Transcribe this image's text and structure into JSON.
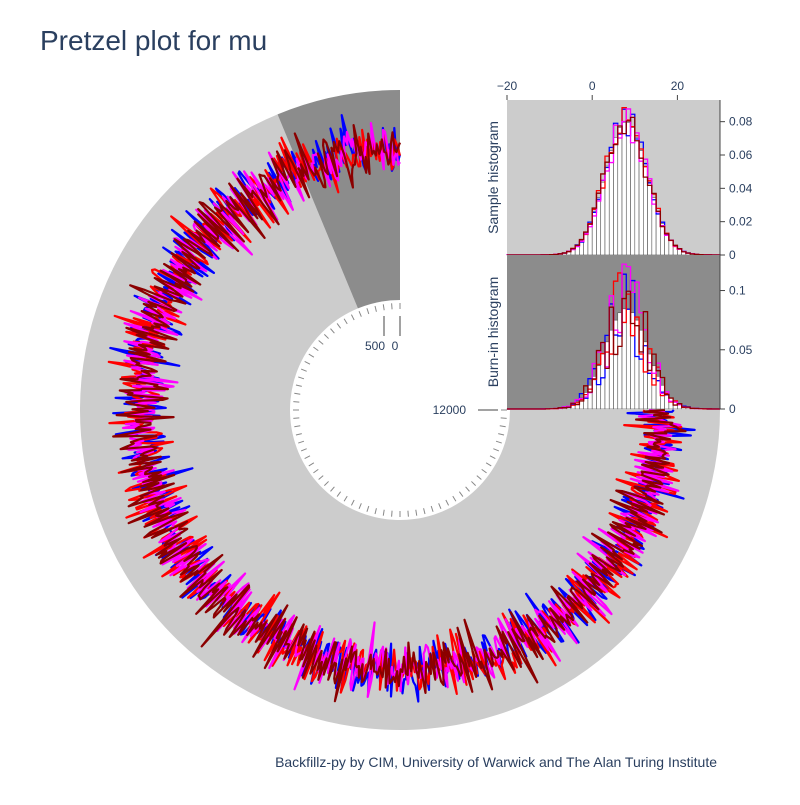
{
  "title": "Pretzel plot for mu",
  "footer": "Backfillz-py by CIM, University of Warwick and The Alan Turing Institute",
  "colors": {
    "ring_background": "#cccccc",
    "burnin_background": "#8c8c8c",
    "chains": [
      "#0000ff",
      "#ff0000",
      "#ff00ff",
      "#8b0000"
    ],
    "histogram_bars": "#ffffff"
  },
  "chart_data": [
    {
      "type": "line",
      "subtype": "polar-trace",
      "title": "Pretzel plot for mu",
      "radial_tick_labels": [
        "500",
        "0"
      ],
      "radial_tick_values": [
        500,
        0
      ],
      "iteration_label_values": [
        12000
      ],
      "iteration_labels": [
        "12000"
      ],
      "chain_count": 4,
      "burn_in_iterations": 1000,
      "total_iterations": 12000,
      "value_range": [
        -25,
        30
      ],
      "value_mean": 8,
      "value_sd": 5
    },
    {
      "type": "bar",
      "subtype": "histogram",
      "ylabel": "Sample histogram",
      "xlim": [
        -20,
        30
      ],
      "x_tick_labels": [
        "−20",
        "0",
        "20"
      ],
      "x_tick_values": [
        -20,
        0,
        20
      ],
      "ylim": [
        0,
        0.093
      ],
      "y_tick_labels": [
        "0",
        "0.02",
        "0.04",
        "0.06",
        "0.08"
      ],
      "y_tick_values": [
        0,
        0.02,
        0.04,
        0.06,
        0.08
      ],
      "bin_width": 1,
      "bin_start": -20,
      "peak_density": 0.08,
      "center": 8,
      "sd": 5
    },
    {
      "type": "bar",
      "subtype": "histogram",
      "ylabel": "Burn-in histogram",
      "xlim": [
        -20,
        30
      ],
      "ylim": [
        0,
        0.13
      ],
      "y_tick_labels": [
        "0",
        "0.05",
        "0.1"
      ],
      "y_tick_values": [
        0,
        0.05,
        0.1
      ],
      "bin_width": 1,
      "bin_start": -20,
      "peak_density": 0.085,
      "center": 8,
      "sd": 5
    }
  ]
}
